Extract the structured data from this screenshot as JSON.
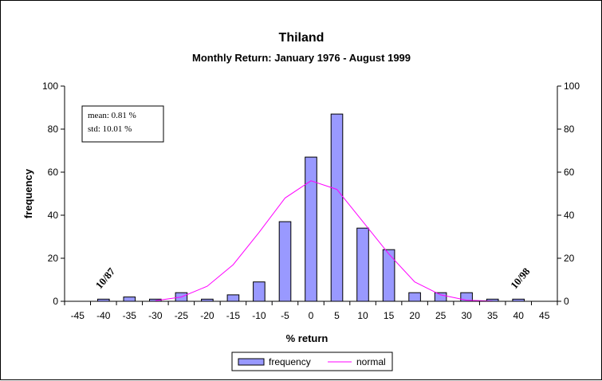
{
  "chart_data": {
    "type": "bar",
    "title": "Thiland",
    "subtitle": "Monthly Return: January 1976 - August 1999",
    "xlabel": "% return",
    "ylabel": "frequency",
    "x_ticks": [
      "-45",
      "-40",
      "-35",
      "-30",
      "-25",
      "-20",
      "-15",
      "-10",
      "-5",
      "0",
      "5",
      "10",
      "15",
      "20",
      "25",
      "30",
      "35",
      "40",
      "45"
    ],
    "y_ticks": [
      "0",
      "20",
      "40",
      "60",
      "80",
      "100"
    ],
    "ylim": [
      0,
      100
    ],
    "x": [
      -45,
      -40,
      -35,
      -30,
      -25,
      -20,
      -15,
      -10,
      -5,
      0,
      5,
      10,
      15,
      20,
      25,
      30,
      35,
      40,
      45
    ],
    "series": [
      {
        "name": "frequency",
        "type": "bar",
        "color": "#9999ff",
        "values": [
          0,
          1,
          2,
          1,
          4,
          1,
          3,
          9,
          37,
          67,
          87,
          34,
          24,
          4,
          4,
          4,
          1,
          1,
          0
        ]
      },
      {
        "name": "normal",
        "type": "line",
        "color": "#ff00ff",
        "values": [
          null,
          null,
          null,
          0.3,
          2,
          7,
          17,
          32,
          48,
          56,
          52,
          37,
          22,
          9,
          3,
          0.5,
          0.1,
          null,
          null
        ]
      }
    ],
    "stats_box": {
      "mean": "mean: 0.81 %",
      "std": "std: 10.01 %"
    },
    "annotations": [
      {
        "text": "10/87",
        "x": -40,
        "y": 1
      },
      {
        "text": "10/98",
        "x": 40,
        "y": 1
      }
    ],
    "legend_position": "bottom",
    "secondary_y_axis": true,
    "grid": false
  }
}
